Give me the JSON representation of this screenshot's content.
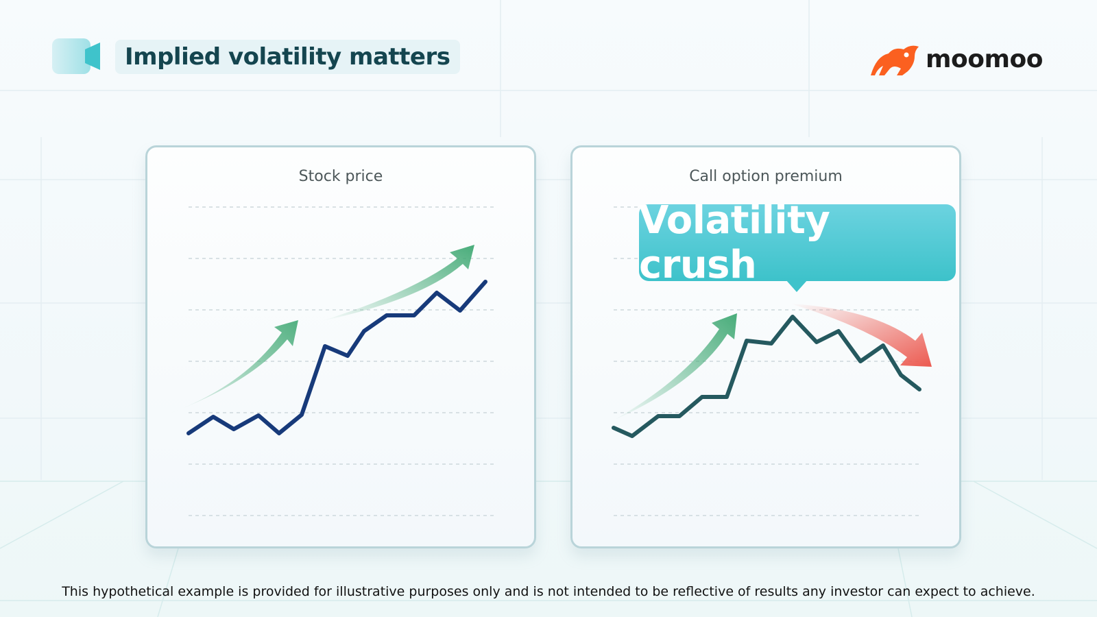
{
  "header": {
    "title": "Implied volatility matters",
    "mark_icon": "video-tag-icon"
  },
  "brand": {
    "name": "moomoo",
    "logo_icon": "moomoo-bull-icon",
    "color": "#fb6020"
  },
  "panels": [
    {
      "title": "Stock price",
      "line_color": "#173a7a",
      "trend": "up",
      "arrows": [
        "green-up-arrow-icon",
        "green-up-arrow-icon"
      ]
    },
    {
      "title": "Call option premium",
      "line_color": "#25595f",
      "trend": "up-then-down",
      "arrows": [
        "green-up-arrow-icon",
        "red-down-arrow-icon"
      ]
    }
  ],
  "callout": {
    "text": "Volatility crush",
    "color": "#45c6ce"
  },
  "disclaimer": "This hypothetical example is provided for illustrative purposes only and is not intended to be reflective of results any investor can expect to achieve.",
  "colors": {
    "title_text": "#14454f",
    "arrow_up": "#3fa873",
    "arrow_down": "#ec5a50",
    "card_border": "#b9d4d9"
  }
}
